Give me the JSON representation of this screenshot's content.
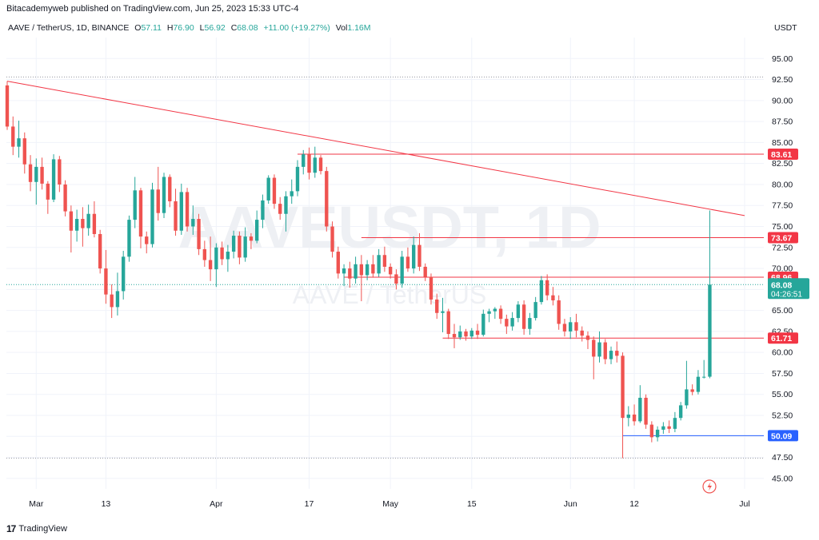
{
  "publish_line": "Bitacademyweb published on TradingView.com, Jun 25, 2023 15:33 UTC-4",
  "footer": {
    "brand": "TradingView",
    "logo_glyph": "17"
  },
  "colors": {
    "up": "#26a69a",
    "down": "#ef5350",
    "line": "#f23645",
    "grid": "#f0f3fa",
    "axis_text": "#131722",
    "blue": "#2962ff",
    "watermark": "#eceff3"
  },
  "chart_data": {
    "type": "candlestick",
    "symbol_line": "AAVE / TetherUS, 1D, BINANCE",
    "ohlc_legend": {
      "O_label": "O",
      "O": "57.11",
      "H_label": "H",
      "H": "76.90",
      "L_label": "L",
      "L": "56.92",
      "C_label": "C",
      "C": "68.08",
      "change": "+11.00 (+19.27%)",
      "vol_label": "Vol",
      "vol": "1.16M"
    },
    "watermark_main": "AAVEUSDT, 1D",
    "watermark_sub": "AAVE / TetherUS",
    "y_unit": "USDT",
    "ylim": [
      43.75,
      97.5
    ],
    "yticks": [
      "95.00",
      "92.50",
      "90.00",
      "87.50",
      "85.00",
      "82.50",
      "80.00",
      "77.50",
      "75.00",
      "72.50",
      "70.00",
      "67.50",
      "65.00",
      "62.50",
      "60.00",
      "57.50",
      "55.00",
      "52.50",
      "50.00",
      "47.50",
      "45.00"
    ],
    "xticks": [
      {
        "label": "Mar",
        "date": "2023-03-01"
      },
      {
        "label": "13",
        "date": "2023-03-13"
      },
      {
        "label": "Apr",
        "date": "2023-04-01"
      },
      {
        "label": "17",
        "date": "2023-04-17"
      },
      {
        "label": "May",
        "date": "2023-05-01"
      },
      {
        "label": "15",
        "date": "2023-05-15"
      },
      {
        "label": "Jun",
        "date": "2023-06-01"
      },
      {
        "label": "12",
        "date": "2023-06-12"
      },
      {
        "label": "Jul",
        "date": "2023-07-01"
      }
    ],
    "first_date": "2023-02-24",
    "last_date": "2023-07-01",
    "candles": [
      {
        "d": "2023-02-24",
        "o": 91.8,
        "h": 92.3,
        "l": 86.5,
        "c": 86.9
      },
      {
        "d": "2023-02-25",
        "o": 86.9,
        "h": 88.1,
        "l": 83.5,
        "c": 84.5
      },
      {
        "d": "2023-02-26",
        "o": 84.5,
        "h": 87.6,
        "l": 83.2,
        "c": 85.5
      },
      {
        "d": "2023-02-27",
        "o": 85.5,
        "h": 86.2,
        "l": 81.3,
        "c": 82.4
      },
      {
        "d": "2023-02-28",
        "o": 82.4,
        "h": 83.5,
        "l": 79.2,
        "c": 80.3
      },
      {
        "d": "2023-03-01",
        "o": 80.3,
        "h": 83.1,
        "l": 77.6,
        "c": 82.1
      },
      {
        "d": "2023-03-02",
        "o": 82.1,
        "h": 83.2,
        "l": 79.4,
        "c": 80.1
      },
      {
        "d": "2023-03-03",
        "o": 80.1,
        "h": 80.4,
        "l": 76.5,
        "c": 78.2
      },
      {
        "d": "2023-03-04",
        "o": 78.2,
        "h": 83.6,
        "l": 77.9,
        "c": 83.0
      },
      {
        "d": "2023-03-05",
        "o": 83.0,
        "h": 83.4,
        "l": 79.1,
        "c": 80.0
      },
      {
        "d": "2023-03-06",
        "o": 80.0,
        "h": 80.5,
        "l": 76.2,
        "c": 76.8
      },
      {
        "d": "2023-03-07",
        "o": 76.8,
        "h": 77.5,
        "l": 71.9,
        "c": 74.5
      },
      {
        "d": "2023-03-08",
        "o": 74.5,
        "h": 77.0,
        "l": 73.2,
        "c": 75.9
      },
      {
        "d": "2023-03-09",
        "o": 75.9,
        "h": 77.3,
        "l": 72.6,
        "c": 74.8
      },
      {
        "d": "2023-03-10",
        "o": 74.8,
        "h": 77.6,
        "l": 73.9,
        "c": 76.5
      },
      {
        "d": "2023-03-11",
        "o": 76.5,
        "h": 78.0,
        "l": 73.7,
        "c": 74.1
      },
      {
        "d": "2023-03-12",
        "o": 74.1,
        "h": 74.6,
        "l": 69.4,
        "c": 70.0
      },
      {
        "d": "2023-03-13",
        "o": 70.0,
        "h": 72.2,
        "l": 65.8,
        "c": 66.9
      },
      {
        "d": "2023-03-14",
        "o": 66.9,
        "h": 68.1,
        "l": 64.1,
        "c": 65.4
      },
      {
        "d": "2023-03-15",
        "o": 65.4,
        "h": 69.5,
        "l": 64.4,
        "c": 67.3
      },
      {
        "d": "2023-03-16",
        "o": 67.3,
        "h": 72.1,
        "l": 66.3,
        "c": 71.4
      },
      {
        "d": "2023-03-17",
        "o": 71.4,
        "h": 76.3,
        "l": 70.8,
        "c": 75.8
      },
      {
        "d": "2023-03-18",
        "o": 75.8,
        "h": 80.9,
        "l": 74.8,
        "c": 79.3
      },
      {
        "d": "2023-03-19",
        "o": 79.3,
        "h": 79.6,
        "l": 72.4,
        "c": 73.8
      },
      {
        "d": "2023-03-20",
        "o": 73.8,
        "h": 74.4,
        "l": 71.8,
        "c": 72.9
      },
      {
        "d": "2023-03-21",
        "o": 72.9,
        "h": 80.2,
        "l": 72.5,
        "c": 79.4
      },
      {
        "d": "2023-03-22",
        "o": 79.4,
        "h": 82.1,
        "l": 75.7,
        "c": 76.6
      },
      {
        "d": "2023-03-23",
        "o": 76.6,
        "h": 81.4,
        "l": 76.0,
        "c": 80.9
      },
      {
        "d": "2023-03-24",
        "o": 80.9,
        "h": 81.2,
        "l": 77.3,
        "c": 78.0
      },
      {
        "d": "2023-03-25",
        "o": 78.0,
        "h": 79.5,
        "l": 73.9,
        "c": 74.5
      },
      {
        "d": "2023-03-26",
        "o": 74.5,
        "h": 80.1,
        "l": 74.0,
        "c": 79.1
      },
      {
        "d": "2023-03-27",
        "o": 79.1,
        "h": 79.6,
        "l": 74.4,
        "c": 75.0
      },
      {
        "d": "2023-03-28",
        "o": 75.0,
        "h": 77.5,
        "l": 74.0,
        "c": 75.9
      },
      {
        "d": "2023-03-29",
        "o": 75.9,
        "h": 76.5,
        "l": 71.6,
        "c": 72.3
      },
      {
        "d": "2023-03-30",
        "o": 72.3,
        "h": 73.3,
        "l": 70.2,
        "c": 71.0
      },
      {
        "d": "2023-03-31",
        "o": 71.0,
        "h": 73.8,
        "l": 68.5,
        "c": 69.9
      },
      {
        "d": "2023-04-01",
        "o": 69.9,
        "h": 73.0,
        "l": 67.8,
        "c": 72.5
      },
      {
        "d": "2023-04-02",
        "o": 72.5,
        "h": 73.2,
        "l": 70.4,
        "c": 71.1
      },
      {
        "d": "2023-04-03",
        "o": 71.1,
        "h": 72.8,
        "l": 69.6,
        "c": 72.0
      },
      {
        "d": "2023-04-04",
        "o": 72.0,
        "h": 74.5,
        "l": 71.2,
        "c": 73.9
      },
      {
        "d": "2023-04-05",
        "o": 73.9,
        "h": 74.4,
        "l": 70.5,
        "c": 71.3
      },
      {
        "d": "2023-04-06",
        "o": 71.3,
        "h": 74.9,
        "l": 70.8,
        "c": 73.8
      },
      {
        "d": "2023-04-07",
        "o": 73.8,
        "h": 74.2,
        "l": 72.3,
        "c": 73.3
      },
      {
        "d": "2023-04-08",
        "o": 73.3,
        "h": 76.9,
        "l": 73.0,
        "c": 75.8
      },
      {
        "d": "2023-04-09",
        "o": 75.8,
        "h": 78.8,
        "l": 74.8,
        "c": 78.1
      },
      {
        "d": "2023-04-10",
        "o": 78.1,
        "h": 81.1,
        "l": 77.7,
        "c": 80.8
      },
      {
        "d": "2023-04-11",
        "o": 80.8,
        "h": 81.2,
        "l": 77.1,
        "c": 77.7
      },
      {
        "d": "2023-04-12",
        "o": 77.7,
        "h": 78.5,
        "l": 75.8,
        "c": 76.5
      },
      {
        "d": "2023-04-13",
        "o": 76.5,
        "h": 79.2,
        "l": 74.4,
        "c": 78.6
      },
      {
        "d": "2023-04-14",
        "o": 78.6,
        "h": 80.6,
        "l": 77.7,
        "c": 79.2
      },
      {
        "d": "2023-04-15",
        "o": 79.2,
        "h": 82.9,
        "l": 78.6,
        "c": 82.1
      },
      {
        "d": "2023-04-16",
        "o": 82.1,
        "h": 84.1,
        "l": 81.2,
        "c": 83.6
      },
      {
        "d": "2023-04-17",
        "o": 83.6,
        "h": 84.4,
        "l": 80.6,
        "c": 81.4
      },
      {
        "d": "2023-04-18",
        "o": 81.4,
        "h": 84.5,
        "l": 80.8,
        "c": 83.2
      },
      {
        "d": "2023-04-19",
        "o": 83.2,
        "h": 83.5,
        "l": 81.2,
        "c": 81.6
      },
      {
        "d": "2023-04-20",
        "o": 81.6,
        "h": 82.1,
        "l": 74.4,
        "c": 75.0
      },
      {
        "d": "2023-04-21",
        "o": 75.0,
        "h": 75.6,
        "l": 71.3,
        "c": 72.0
      },
      {
        "d": "2023-04-22",
        "o": 72.0,
        "h": 72.6,
        "l": 68.8,
        "c": 69.4
      },
      {
        "d": "2023-04-23",
        "o": 69.4,
        "h": 70.5,
        "l": 67.9,
        "c": 70.0
      },
      {
        "d": "2023-04-24",
        "o": 70.0,
        "h": 70.8,
        "l": 67.7,
        "c": 68.8
      },
      {
        "d": "2023-04-25",
        "o": 68.8,
        "h": 71.4,
        "l": 68.2,
        "c": 70.5
      },
      {
        "d": "2023-04-26",
        "o": 70.5,
        "h": 71.6,
        "l": 66.1,
        "c": 69.2
      },
      {
        "d": "2023-04-27",
        "o": 69.2,
        "h": 71.0,
        "l": 68.6,
        "c": 70.5
      },
      {
        "d": "2023-04-28",
        "o": 70.5,
        "h": 71.6,
        "l": 68.9,
        "c": 69.4
      },
      {
        "d": "2023-04-29",
        "o": 69.4,
        "h": 72.3,
        "l": 69.0,
        "c": 71.6
      },
      {
        "d": "2023-04-30",
        "o": 71.6,
        "h": 72.6,
        "l": 69.6,
        "c": 70.2
      },
      {
        "d": "2023-05-01",
        "o": 70.2,
        "h": 70.6,
        "l": 68.8,
        "c": 69.3
      },
      {
        "d": "2023-05-02",
        "o": 69.3,
        "h": 69.9,
        "l": 67.5,
        "c": 68.2
      },
      {
        "d": "2023-05-03",
        "o": 68.2,
        "h": 72.1,
        "l": 67.7,
        "c": 71.4
      },
      {
        "d": "2023-05-04",
        "o": 71.4,
        "h": 72.5,
        "l": 69.6,
        "c": 70.0
      },
      {
        "d": "2023-05-05",
        "o": 70.0,
        "h": 73.8,
        "l": 69.4,
        "c": 72.8
      },
      {
        "d": "2023-05-06",
        "o": 72.8,
        "h": 74.2,
        "l": 69.7,
        "c": 70.2
      },
      {
        "d": "2023-05-07",
        "o": 70.2,
        "h": 70.6,
        "l": 68.5,
        "c": 69.0
      },
      {
        "d": "2023-05-08",
        "o": 69.0,
        "h": 69.4,
        "l": 65.7,
        "c": 66.3
      },
      {
        "d": "2023-05-09",
        "o": 66.3,
        "h": 67.0,
        "l": 64.0,
        "c": 64.7
      },
      {
        "d": "2023-05-10",
        "o": 64.7,
        "h": 66.5,
        "l": 62.4,
        "c": 64.9
      },
      {
        "d": "2023-05-11",
        "o": 64.9,
        "h": 65.2,
        "l": 61.6,
        "c": 62.2
      },
      {
        "d": "2023-05-12",
        "o": 62.2,
        "h": 63.4,
        "l": 60.5,
        "c": 61.8
      },
      {
        "d": "2023-05-13",
        "o": 61.8,
        "h": 63.2,
        "l": 61.5,
        "c": 62.5
      },
      {
        "d": "2023-05-14",
        "o": 62.5,
        "h": 62.8,
        "l": 61.4,
        "c": 61.9
      },
      {
        "d": "2023-05-15",
        "o": 61.9,
        "h": 62.9,
        "l": 61.6,
        "c": 62.6
      },
      {
        "d": "2023-05-16",
        "o": 62.6,
        "h": 63.4,
        "l": 61.6,
        "c": 62.1
      },
      {
        "d": "2023-05-17",
        "o": 62.1,
        "h": 65.1,
        "l": 61.9,
        "c": 64.6
      },
      {
        "d": "2023-05-18",
        "o": 64.6,
        "h": 65.2,
        "l": 63.6,
        "c": 64.9
      },
      {
        "d": "2023-05-19",
        "o": 64.9,
        "h": 65.4,
        "l": 64.0,
        "c": 65.2
      },
      {
        "d": "2023-05-20",
        "o": 65.2,
        "h": 65.6,
        "l": 63.4,
        "c": 64.0
      },
      {
        "d": "2023-05-21",
        "o": 64.0,
        "h": 64.5,
        "l": 62.2,
        "c": 63.1
      },
      {
        "d": "2023-05-22",
        "o": 63.1,
        "h": 64.8,
        "l": 62.6,
        "c": 64.1
      },
      {
        "d": "2023-05-23",
        "o": 64.1,
        "h": 66.1,
        "l": 63.6,
        "c": 65.7
      },
      {
        "d": "2023-05-24",
        "o": 65.7,
        "h": 66.2,
        "l": 62.1,
        "c": 62.8
      },
      {
        "d": "2023-05-25",
        "o": 62.8,
        "h": 64.7,
        "l": 62.1,
        "c": 64.1
      },
      {
        "d": "2023-05-26",
        "o": 64.1,
        "h": 66.6,
        "l": 63.8,
        "c": 66.0
      },
      {
        "d": "2023-05-27",
        "o": 66.0,
        "h": 69.1,
        "l": 65.7,
        "c": 68.6
      },
      {
        "d": "2023-05-28",
        "o": 68.6,
        "h": 69.3,
        "l": 66.2,
        "c": 66.8
      },
      {
        "d": "2023-05-29",
        "o": 66.8,
        "h": 67.8,
        "l": 65.6,
        "c": 66.2
      },
      {
        "d": "2023-05-30",
        "o": 66.2,
        "h": 66.8,
        "l": 62.7,
        "c": 63.4
      },
      {
        "d": "2023-05-31",
        "o": 63.4,
        "h": 64.0,
        "l": 61.9,
        "c": 62.5
      },
      {
        "d": "2023-06-01",
        "o": 62.5,
        "h": 64.2,
        "l": 61.6,
        "c": 63.6
      },
      {
        "d": "2023-06-02",
        "o": 63.6,
        "h": 64.6,
        "l": 61.8,
        "c": 62.6
      },
      {
        "d": "2023-06-03",
        "o": 62.6,
        "h": 63.1,
        "l": 61.3,
        "c": 62.0
      },
      {
        "d": "2023-06-04",
        "o": 62.0,
        "h": 62.5,
        "l": 60.4,
        "c": 61.5
      },
      {
        "d": "2023-06-05",
        "o": 61.5,
        "h": 61.9,
        "l": 56.8,
        "c": 59.5
      },
      {
        "d": "2023-06-06",
        "o": 59.5,
        "h": 62.5,
        "l": 58.8,
        "c": 61.2
      },
      {
        "d": "2023-06-07",
        "o": 61.2,
        "h": 61.6,
        "l": 58.6,
        "c": 59.2
      },
      {
        "d": "2023-06-08",
        "o": 59.2,
        "h": 60.7,
        "l": 58.6,
        "c": 60.2
      },
      {
        "d": "2023-06-09",
        "o": 60.2,
        "h": 61.3,
        "l": 58.8,
        "c": 59.6
      },
      {
        "d": "2023-06-10",
        "o": 59.6,
        "h": 60.0,
        "l": 47.4,
        "c": 52.2
      },
      {
        "d": "2023-06-11",
        "o": 52.2,
        "h": 53.6,
        "l": 51.2,
        "c": 52.6
      },
      {
        "d": "2023-06-12",
        "o": 52.6,
        "h": 53.8,
        "l": 51.3,
        "c": 51.8
      },
      {
        "d": "2023-06-13",
        "o": 51.8,
        "h": 56.1,
        "l": 51.6,
        "c": 54.6
      },
      {
        "d": "2023-06-14",
        "o": 54.6,
        "h": 55.0,
        "l": 50.9,
        "c": 51.4
      },
      {
        "d": "2023-06-15",
        "o": 51.4,
        "h": 51.8,
        "l": 49.3,
        "c": 49.9
      },
      {
        "d": "2023-06-16",
        "o": 49.9,
        "h": 51.2,
        "l": 49.4,
        "c": 50.8
      },
      {
        "d": "2023-06-17",
        "o": 50.8,
        "h": 51.7,
        "l": 50.3,
        "c": 51.2
      },
      {
        "d": "2023-06-18",
        "o": 51.2,
        "h": 51.9,
        "l": 50.4,
        "c": 50.9
      },
      {
        "d": "2023-06-19",
        "o": 50.9,
        "h": 52.9,
        "l": 50.5,
        "c": 52.2
      },
      {
        "d": "2023-06-20",
        "o": 52.2,
        "h": 54.1,
        "l": 51.9,
        "c": 53.7
      },
      {
        "d": "2023-06-21",
        "o": 53.7,
        "h": 59.0,
        "l": 53.3,
        "c": 55.6
      },
      {
        "d": "2023-06-22",
        "o": 55.6,
        "h": 56.2,
        "l": 54.9,
        "c": 55.3
      },
      {
        "d": "2023-06-23",
        "o": 55.3,
        "h": 57.9,
        "l": 55.0,
        "c": 57.1
      },
      {
        "d": "2023-06-24",
        "o": 57.1,
        "h": 59.1,
        "l": 56.9,
        "c": 57.1
      },
      {
        "d": "2023-06-25",
        "o": 57.11,
        "h": 76.9,
        "l": 56.92,
        "c": 68.08
      }
    ],
    "hlines": [
      {
        "value": 83.61,
        "label": "83.61",
        "from": "2023-04-15"
      },
      {
        "value": 73.67,
        "label": "73.67",
        "from": "2023-04-26"
      },
      {
        "value": 68.96,
        "label": "68.96",
        "from": "2023-04-23"
      },
      {
        "value": 61.71,
        "label": "61.71",
        "from": "2023-05-10"
      },
      {
        "value": 50.09,
        "label": "50.09",
        "from": "2023-06-10",
        "color": "blue"
      }
    ],
    "trendline": {
      "from": {
        "d": "2023-02-24",
        "v": 92.3
      },
      "to": {
        "d": "2023-07-01",
        "v": 76.3
      }
    },
    "dotted_hlines": [
      92.8,
      47.4
    ],
    "current_price": {
      "value": "68.08",
      "countdown": "04:26:51"
    },
    "grid": true
  }
}
